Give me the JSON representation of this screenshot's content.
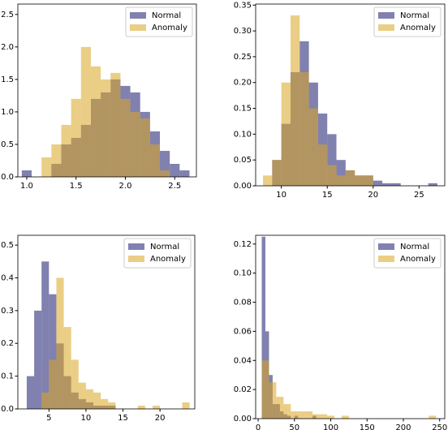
{
  "chart_data": [
    {
      "type": "histogram",
      "xlim": [
        0.91,
        2.72
      ],
      "ylim": [
        0,
        2.66
      ],
      "xticks": [
        {
          "value": 1,
          "label": "1.0"
        },
        1.5,
        {
          "value": 2,
          "label": "2.0"
        },
        2.5
      ],
      "yticks": [
        {
          "value": 0,
          "label": "0.0"
        },
        0.5,
        {
          "value": 1,
          "label": "1.0"
        },
        1.5,
        {
          "value": 2,
          "label": "2.0"
        },
        2.5
      ],
      "legend": "upper right",
      "series": [
        {
          "name": "Normal",
          "color": "#191970",
          "bins": [
            0.95,
            1.05,
            1.15,
            1.25,
            1.35,
            1.45,
            1.55,
            1.65,
            1.75,
            1.85,
            1.95,
            2.05,
            2.15,
            2.25,
            2.35,
            2.45,
            2.55,
            2.65
          ],
          "values": [
            0.1,
            0,
            0,
            0.2,
            0.5,
            0.6,
            0.8,
            1.2,
            1.3,
            1.5,
            1.4,
            1.3,
            1.0,
            0.7,
            0.4,
            0.2,
            0.1
          ]
        },
        {
          "name": "Anomaly",
          "color": "#daa520",
          "bins": [
            1.15,
            1.25,
            1.35,
            1.45,
            1.55,
            1.65,
            1.75,
            1.85,
            1.95,
            2.05,
            2.15,
            2.25,
            2.35,
            2.45
          ],
          "values": [
            0.3,
            0.5,
            0.8,
            1.2,
            2.0,
            1.7,
            1.5,
            1.6,
            1.2,
            1.0,
            0.9,
            0.5,
            0.1
          ]
        }
      ]
    },
    {
      "type": "histogram",
      "xlim": [
        7.2,
        27.8
      ],
      "ylim": [
        0,
        0.352
      ],
      "xticks": [
        10,
        15,
        20,
        25
      ],
      "yticks": [
        {
          "value": 0,
          "label": "0.00"
        },
        0.05,
        {
          "value": 0.1,
          "label": "0.10"
        },
        0.15,
        {
          "value": 0.2,
          "label": "0.20"
        },
        0.25,
        {
          "value": 0.3,
          "label": "0.30"
        },
        0.35
      ],
      "legend": "upper right",
      "series": [
        {
          "name": "Normal",
          "color": "#191970",
          "bins": [
            8,
            9,
            10,
            11,
            12,
            13,
            14,
            15,
            16,
            17,
            18,
            19,
            20,
            21,
            22,
            23,
            24,
            25,
            26,
            27
          ],
          "values": [
            0,
            0.05,
            0.12,
            0.22,
            0.28,
            0.2,
            0.14,
            0.1,
            0.05,
            0.03,
            0.02,
            0.02,
            0.01,
            0.005,
            0.005,
            0,
            0,
            0,
            0.005
          ]
        },
        {
          "name": "Anomaly",
          "color": "#daa520",
          "bins": [
            8,
            9,
            10,
            11,
            12,
            13,
            14,
            15,
            16,
            17,
            18,
            19,
            20
          ],
          "values": [
            0.02,
            0.05,
            0.2,
            0.33,
            0.22,
            0.15,
            0.08,
            0.04,
            0.02,
            0.03,
            0.02,
            0.02
          ]
        }
      ]
    },
    {
      "type": "histogram",
      "xlim": [
        0.8,
        24.7
      ],
      "ylim": [
        0,
        0.53
      ],
      "xticks": [
        5,
        10,
        15,
        20
      ],
      "yticks": [
        {
          "value": 0,
          "label": "0.0"
        },
        0.1,
        0.2,
        0.3,
        0.4,
        0.5
      ],
      "legend": "upper right",
      "series": [
        {
          "name": "Normal",
          "color": "#191970",
          "bins": [
            2,
            3,
            4,
            5,
            6,
            7,
            8,
            9,
            10,
            11,
            12,
            13,
            14
          ],
          "values": [
            0.1,
            0.3,
            0.45,
            0.35,
            0.2,
            0.1,
            0.05,
            0.03,
            0.02,
            0.01,
            0.01,
            0.01
          ]
        },
        {
          "name": "Anomaly",
          "color": "#daa520",
          "bins": [
            4,
            5,
            6,
            7,
            8,
            9,
            10,
            11,
            12,
            13,
            14,
            15,
            16,
            17,
            18,
            19,
            20,
            21,
            22,
            23,
            24
          ],
          "values": [
            0.05,
            0.15,
            0.4,
            0.25,
            0.15,
            0.08,
            0.06,
            0.05,
            0.03,
            0.02,
            0,
            0,
            0,
            0.01,
            0,
            0.01,
            0,
            0,
            0,
            0.02
          ]
        }
      ]
    },
    {
      "type": "histogram",
      "xlim": [
        -3.4,
        257
      ],
      "ylim": [
        0,
        0.126
      ],
      "xticks": [
        0,
        50,
        100,
        150,
        200,
        250
      ],
      "yticks": [
        {
          "value": 0,
          "label": "0.00"
        },
        0.02,
        0.04,
        0.06,
        0.08,
        {
          "value": 0.1,
          "label": "0.10"
        },
        0.12
      ],
      "legend": "upper right",
      "series": [
        {
          "name": "Normal",
          "color": "#191970",
          "bins": [
            5,
            10,
            15,
            20,
            25,
            30,
            35,
            40,
            45,
            50,
            55,
            60,
            65,
            70,
            75,
            80,
            85
          ],
          "values": [
            0.125,
            0.06,
            0.03,
            0.01,
            0.01,
            0.005,
            0.003,
            0.002,
            0,
            0.002,
            0,
            0,
            0,
            0,
            0.002,
            0
          ]
        },
        {
          "name": "Anomaly",
          "color": "#daa520",
          "bins": [
            5,
            15,
            25,
            35,
            45,
            55,
            65,
            75,
            85,
            95,
            105,
            115,
            125,
            135,
            145,
            155,
            165,
            175,
            185,
            195,
            205,
            215,
            225,
            235,
            245
          ],
          "values": [
            0.04,
            0.025,
            0.015,
            0.01,
            0.005,
            0.005,
            0.005,
            0.003,
            0.003,
            0.002,
            0,
            0.002,
            0,
            0,
            0,
            0,
            0,
            0,
            0,
            0,
            0,
            0,
            0,
            0.002
          ]
        }
      ]
    }
  ]
}
